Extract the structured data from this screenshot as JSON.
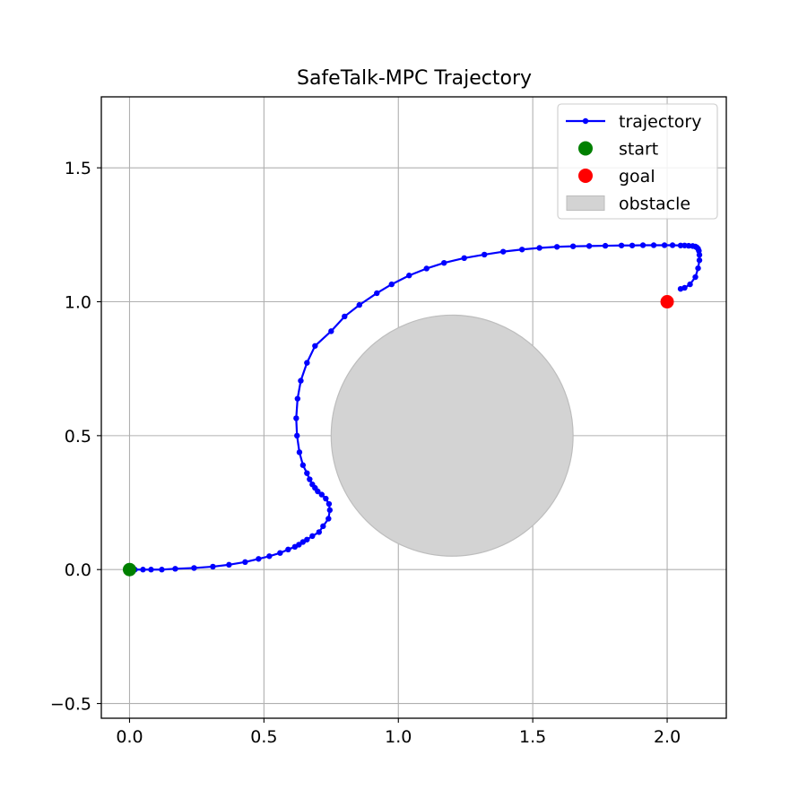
{
  "chart_data": {
    "type": "line",
    "title": "SafeTalk-MPC Trajectory",
    "xlabel": "",
    "ylabel": "",
    "xlim": [
      -0.105,
      2.22
    ],
    "ylim": [
      -0.555,
      1.765
    ],
    "xticks": [
      0.0,
      0.5,
      1.0,
      1.5,
      2.0
    ],
    "xtick_labels": [
      "0.0",
      "0.5",
      "1.0",
      "1.5",
      "2.0"
    ],
    "yticks": [
      -0.5,
      0.0,
      0.5,
      1.0,
      1.5
    ],
    "ytick_labels": [
      "−0.5",
      "0.0",
      "0.5",
      "1.0",
      "1.5"
    ],
    "grid": true,
    "legend_position": "top-right",
    "legend": [
      {
        "label": "trajectory",
        "kind": "line-marker",
        "color": "#0000ff"
      },
      {
        "label": "start",
        "kind": "marker",
        "color": "#008000"
      },
      {
        "label": "goal",
        "kind": "marker",
        "color": "#ff0000"
      },
      {
        "label": "obstacle",
        "kind": "patch",
        "color": "#d3d3d3"
      }
    ],
    "series": [
      {
        "name": "trajectory",
        "color": "#0000ff",
        "points": [
          [
            0.0,
            0.0
          ],
          [
            0.005,
            0.0
          ],
          [
            0.01,
            0.0
          ],
          [
            0.02,
            0.0
          ],
          [
            0.05,
            0.0
          ],
          [
            0.08,
            0.0
          ],
          [
            0.12,
            0.0
          ],
          [
            0.17,
            0.003
          ],
          [
            0.24,
            0.006
          ],
          [
            0.31,
            0.011
          ],
          [
            0.37,
            0.018
          ],
          [
            0.43,
            0.028
          ],
          [
            0.48,
            0.04
          ],
          [
            0.52,
            0.05
          ],
          [
            0.56,
            0.062
          ],
          [
            0.59,
            0.075
          ],
          [
            0.615,
            0.085
          ],
          [
            0.63,
            0.093
          ],
          [
            0.645,
            0.103
          ],
          [
            0.66,
            0.112
          ],
          [
            0.68,
            0.125
          ],
          [
            0.705,
            0.14
          ],
          [
            0.72,
            0.162
          ],
          [
            0.74,
            0.19
          ],
          [
            0.745,
            0.222
          ],
          [
            0.742,
            0.245
          ],
          [
            0.73,
            0.265
          ],
          [
            0.715,
            0.28
          ],
          [
            0.7,
            0.292
          ],
          [
            0.69,
            0.305
          ],
          [
            0.68,
            0.318
          ],
          [
            0.67,
            0.337
          ],
          [
            0.66,
            0.36
          ],
          [
            0.645,
            0.39
          ],
          [
            0.632,
            0.438
          ],
          [
            0.623,
            0.5
          ],
          [
            0.62,
            0.565
          ],
          [
            0.625,
            0.638
          ],
          [
            0.637,
            0.705
          ],
          [
            0.66,
            0.772
          ],
          [
            0.69,
            0.835
          ],
          [
            0.75,
            0.89
          ],
          [
            0.8,
            0.945
          ],
          [
            0.855,
            0.988
          ],
          [
            0.92,
            1.032
          ],
          [
            0.975,
            1.065
          ],
          [
            1.04,
            1.098
          ],
          [
            1.105,
            1.124
          ],
          [
            1.17,
            1.145
          ],
          [
            1.245,
            1.163
          ],
          [
            1.32,
            1.176
          ],
          [
            1.39,
            1.187
          ],
          [
            1.46,
            1.195
          ],
          [
            1.525,
            1.201
          ],
          [
            1.59,
            1.205
          ],
          [
            1.65,
            1.207
          ],
          [
            1.71,
            1.208
          ],
          [
            1.77,
            1.209
          ],
          [
            1.83,
            1.21
          ],
          [
            1.87,
            1.21
          ],
          [
            1.91,
            1.211
          ],
          [
            1.95,
            1.211
          ],
          [
            1.99,
            1.211
          ],
          [
            2.02,
            1.211
          ],
          [
            2.05,
            1.21
          ],
          [
            2.065,
            1.21
          ],
          [
            2.08,
            1.209
          ],
          [
            2.095,
            1.208
          ],
          [
            2.105,
            1.206
          ],
          [
            2.11,
            1.203
          ],
          [
            2.115,
            1.198
          ],
          [
            2.118,
            1.19
          ],
          [
            2.12,
            1.175
          ],
          [
            2.12,
            1.155
          ],
          [
            2.115,
            1.125
          ],
          [
            2.105,
            1.092
          ],
          [
            2.085,
            1.065
          ],
          [
            2.065,
            1.052
          ],
          [
            2.05,
            1.048
          ]
        ]
      }
    ],
    "start": {
      "label": "start",
      "x": 0.0,
      "y": 0.0,
      "color": "#008000"
    },
    "goal": {
      "label": "goal",
      "x": 2.0,
      "y": 1.0,
      "color": "#ff0000"
    },
    "obstacle": {
      "label": "obstacle",
      "center": [
        1.2,
        0.5
      ],
      "radius": 0.45,
      "color": "#d3d3d3"
    }
  }
}
